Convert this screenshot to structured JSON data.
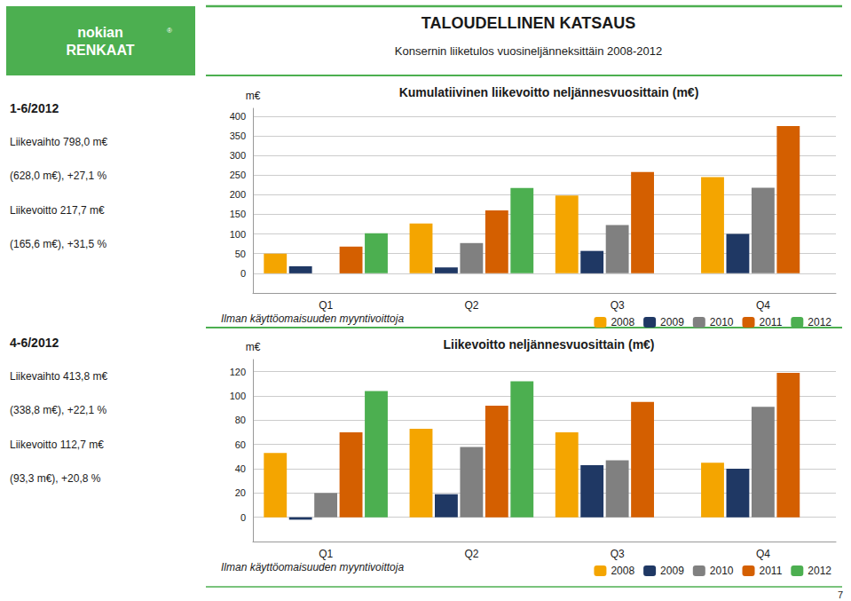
{
  "title": "TALOUDELLINEN KATSAUS",
  "subtitle": "Konsernin liiketulos vuosineljänneksittäin 2008-2012",
  "annotations": [
    [
      "nokian",
      "RENKAAT",
      "®"
    ],
    [
      "1-6/2012",
      "Liikevaihto 798,0 m€",
      "(628,0 m€), +27,1 %",
      "Liikevoitto 217,7 m€",
      "(165,6 m€), +31,5 %"
    ],
    [
      "4-6/2012",
      "Liikevaihto 413,8 m€",
      "(338,8 m€), +22,1 %",
      "Liikevoitto 112,7 m€",
      "(93,3 m€), +20,8 %"
    ],
    [
      "7"
    ]
  ],
  "chart_data": [
    {
      "type": "bar",
      "title": "Kumulatiivinen liikevoitto neljännesvuosittain (m€)",
      "categories": [
        "Q1",
        "Q2",
        "Q3",
        "Q4"
      ],
      "series": [
        {
          "name": "2008",
          "color": "#f4a500",
          "values": [
            50,
            127,
            198,
            245
          ]
        },
        {
          "name": "2009",
          "color": "#1f3864",
          "values": [
            18,
            15,
            57,
            100
          ]
        },
        {
          "name": "2010",
          "color": "#808080",
          "values": [
            0,
            77,
            123,
            218
          ]
        },
        {
          "name": "2011",
          "color": "#d45f00",
          "values": [
            68,
            160,
            258,
            375
          ]
        },
        {
          "name": "2012",
          "color": "#4caf50",
          "values": [
            102,
            217,
            null,
            null
          ]
        }
      ],
      "ylabel": "m€",
      "ylim": [
        -50,
        420
      ],
      "yticks": [
        0,
        50,
        100,
        150,
        200,
        250,
        300,
        350,
        400
      ],
      "grid": true,
      "legend": "lower right",
      "annotations": [
        "Ilman käyttöomaisuuden myyntivoittoja"
      ]
    },
    {
      "type": "bar",
      "title": "Liikevoitto neljännesvuosittain (m€)",
      "categories": [
        "Q1",
        "Q2",
        "Q3",
        "Q4"
      ],
      "series": [
        {
          "name": "2008",
          "color": "#f4a500",
          "values": [
            53,
            73,
            70,
            45
          ]
        },
        {
          "name": "2009",
          "color": "#1f3864",
          "values": [
            -2,
            19,
            43,
            40
          ]
        },
        {
          "name": "2010",
          "color": "#808080",
          "values": [
            20,
            58,
            47,
            91
          ]
        },
        {
          "name": "2011",
          "color": "#d45f00",
          "values": [
            70,
            92,
            95,
            119
          ]
        },
        {
          "name": "2012",
          "color": "#4caf50",
          "values": [
            104,
            112,
            null,
            null
          ]
        }
      ],
      "ylabel": "m€",
      "ylim": [
        -20,
        130
      ],
      "yticks": [
        0,
        20,
        40,
        60,
        80,
        100,
        120
      ],
      "grid": true,
      "legend": "lower right",
      "annotations": [
        "Ilman käyttöomaisuuden myyntivoittoja"
      ]
    }
  ]
}
